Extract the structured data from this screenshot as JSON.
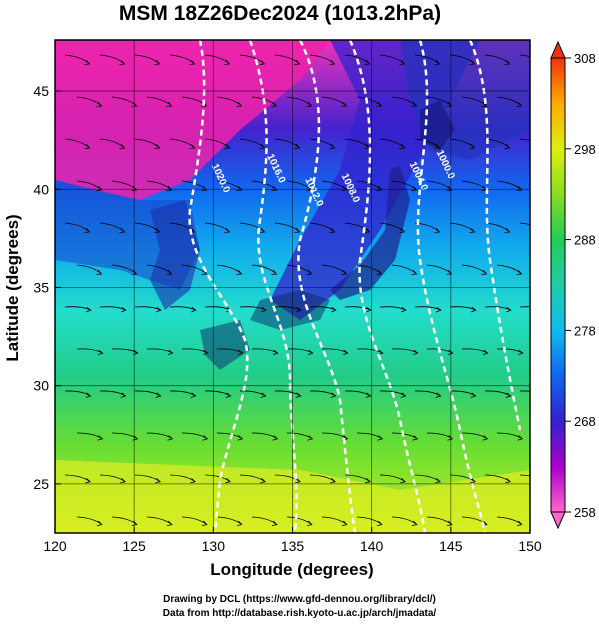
{
  "title": "MSM 18Z26Dec2024 (1013.2hPa)",
  "x_axis": {
    "label": "Longitude (degrees)",
    "range": [
      120,
      150
    ],
    "ticks": [
      120,
      125,
      130,
      135,
      140,
      145,
      150
    ]
  },
  "y_axis": {
    "label": "Latitude  (degrees)",
    "range": [
      22.5,
      47.6
    ],
    "ticks": [
      25,
      30,
      35,
      40,
      45
    ]
  },
  "colorbar": {
    "min": 258,
    "max": 308,
    "ticks": [
      258,
      268,
      278,
      288,
      298,
      308
    ],
    "colors": [
      "#ff66cc",
      "#cc00cc",
      "#6633cc",
      "#2233dd",
      "#1166ee",
      "#11aaee",
      "#22ddcc",
      "#22cc88",
      "#33cc33",
      "#66dd22",
      "#aaee11",
      "#ddee00",
      "#ffcc00",
      "#ff8800",
      "#ee3311"
    ]
  },
  "isobars": [
    {
      "label": "1020.0",
      "lat": 40.5,
      "lon": 130.3
    },
    {
      "label": "1016.0",
      "lat": 41.0,
      "lon": 133.8
    },
    {
      "label": "1012.0",
      "lat": 39.8,
      "lon": 136.2
    },
    {
      "label": "1008.0",
      "lat": 40.0,
      "lon": 138.5
    },
    {
      "label": "1004.0",
      "lat": 40.6,
      "lon": 142.8
    },
    {
      "label": "1000.0",
      "lat": 41.2,
      "lon": 144.5
    }
  ],
  "chart_data": {
    "type": "map",
    "field": "temperature (K) with surface streamlines and isobars (hPa)",
    "colorbar_range": [
      258,
      308
    ],
    "temperature_by_latitude": [
      {
        "lat": 47,
        "value": 262
      },
      {
        "lat": 42,
        "value": 270
      },
      {
        "lat": 38,
        "value": 275
      },
      {
        "lat": 34,
        "value": 282
      },
      {
        "lat": 30,
        "value": 287
      },
      {
        "lat": 26,
        "value": 292
      },
      {
        "lat": 23,
        "value": 294
      }
    ],
    "isobar_values_hPa": [
      1020.0,
      1016.0,
      1012.0,
      1008.0,
      1004.0,
      1000.0
    ]
  },
  "footer": {
    "line1": "Drawing by DCL (https://www.gfd-dennou.org/library/dcl/)",
    "line2": "Data from http://database.rish.kyoto-u.ac.jp/arch/jmadata/"
  }
}
